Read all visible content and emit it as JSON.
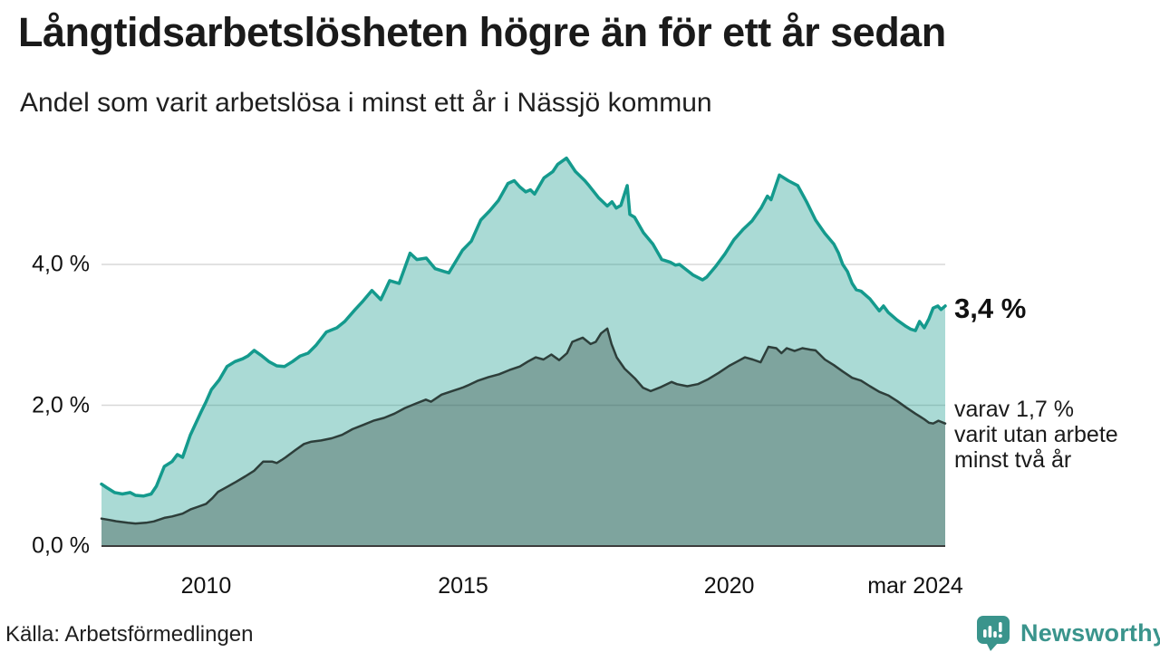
{
  "header": {
    "title": "Långtidsarbetslösheten högre än för ett år sedan",
    "subtitle": "Andel som varit arbetslösa i minst ett år i Nässjö kommun"
  },
  "annotations": {
    "latest_label": "3,4 %",
    "secondary_lines": [
      "varav 1,7 %",
      "varit utan arbete",
      "minst två år"
    ]
  },
  "footer": {
    "source": "Källa: Arbetsförmedlingen",
    "brand_name": "Newsworthy"
  },
  "colors": {
    "teal_line": "#149a8d",
    "teal_fill": "rgba(20,153,138,0.36)",
    "dark_line": "#2d3e3a",
    "dark_fill": "rgba(45,62,58,0.35)",
    "grid": "#d8d8d8",
    "axis": "#3c3c3c",
    "brand_teal": "#3a948c",
    "text": "#1a1a1a"
  },
  "chart_data": {
    "type": "area",
    "title": "Långtidsarbetslösheten högre än för ett år sedan",
    "subtitle": "Andel som varit arbetslösa i minst ett år i Nässjö kommun",
    "xlabel": "",
    "ylabel": "",
    "unit": "%",
    "grid": "horizontal",
    "legend_position": "none",
    "x_range": [
      2008.0,
      2024.13
    ],
    "ylim": [
      0,
      5.7
    ],
    "y_ticks": [
      {
        "value": 0,
        "label": "0,0 %"
      },
      {
        "value": 2,
        "label": "2,0 %"
      },
      {
        "value": 4,
        "label": "4,0 %"
      }
    ],
    "x_ticks": [
      {
        "year": 2010,
        "label": "2010",
        "dx": 0
      },
      {
        "year": 2015,
        "label": "2015",
        "dx": -5
      },
      {
        "year": 2020,
        "label": "2020",
        "dx": 0
      },
      {
        "year": 2024.13,
        "label": "mar 2024",
        "dx": -33
      }
    ],
    "series": [
      {
        "name": "Arbetslösa minst ett år",
        "end_label": "3,4 %",
        "latest_value": 3.4,
        "stroke": "#149a8d",
        "fill": "rgba(20,153,138,0.36)",
        "stroke_width": 3.5,
        "points": [
          [
            2008.0,
            0.88
          ],
          [
            2008.1,
            0.83
          ],
          [
            2008.25,
            0.76
          ],
          [
            2008.4,
            0.74
          ],
          [
            2008.55,
            0.76
          ],
          [
            2008.65,
            0.72
          ],
          [
            2008.8,
            0.71
          ],
          [
            2008.95,
            0.74
          ],
          [
            2009.05,
            0.85
          ],
          [
            2009.2,
            1.13
          ],
          [
            2009.35,
            1.2
          ],
          [
            2009.45,
            1.3
          ],
          [
            2009.55,
            1.26
          ],
          [
            2009.7,
            1.58
          ],
          [
            2009.9,
            1.9
          ],
          [
            2010.0,
            2.05
          ],
          [
            2010.1,
            2.22
          ],
          [
            2010.25,
            2.36
          ],
          [
            2010.4,
            2.55
          ],
          [
            2010.55,
            2.62
          ],
          [
            2010.7,
            2.66
          ],
          [
            2010.8,
            2.7
          ],
          [
            2010.92,
            2.78
          ],
          [
            2011.05,
            2.71
          ],
          [
            2011.2,
            2.62
          ],
          [
            2011.35,
            2.56
          ],
          [
            2011.5,
            2.55
          ],
          [
            2011.65,
            2.62
          ],
          [
            2011.8,
            2.7
          ],
          [
            2011.95,
            2.74
          ],
          [
            2012.1,
            2.85
          ],
          [
            2012.3,
            3.04
          ],
          [
            2012.5,
            3.1
          ],
          [
            2012.65,
            3.19
          ],
          [
            2012.85,
            3.36
          ],
          [
            2013.0,
            3.48
          ],
          [
            2013.17,
            3.63
          ],
          [
            2013.34,
            3.5
          ],
          [
            2013.51,
            3.77
          ],
          [
            2013.69,
            3.73
          ],
          [
            2013.9,
            4.16
          ],
          [
            2014.03,
            4.07
          ],
          [
            2014.21,
            4.09
          ],
          [
            2014.38,
            3.94
          ],
          [
            2014.55,
            3.9
          ],
          [
            2014.64,
            3.88
          ],
          [
            2014.9,
            4.2
          ],
          [
            2015.07,
            4.33
          ],
          [
            2015.25,
            4.63
          ],
          [
            2015.42,
            4.76
          ],
          [
            2015.59,
            4.91
          ],
          [
            2015.77,
            5.15
          ],
          [
            2015.89,
            5.19
          ],
          [
            2016.0,
            5.1
          ],
          [
            2016.11,
            5.03
          ],
          [
            2016.2,
            5.06
          ],
          [
            2016.28,
            5.0
          ],
          [
            2016.46,
            5.23
          ],
          [
            2016.63,
            5.32
          ],
          [
            2016.72,
            5.42
          ],
          [
            2016.89,
            5.51
          ],
          [
            2017.06,
            5.32
          ],
          [
            2017.24,
            5.19
          ],
          [
            2017.32,
            5.12
          ],
          [
            2017.5,
            4.95
          ],
          [
            2017.67,
            4.83
          ],
          [
            2017.76,
            4.89
          ],
          [
            2017.84,
            4.8
          ],
          [
            2017.93,
            4.84
          ],
          [
            2018.05,
            5.12
          ],
          [
            2018.1,
            4.71
          ],
          [
            2018.19,
            4.67
          ],
          [
            2018.36,
            4.45
          ],
          [
            2018.54,
            4.29
          ],
          [
            2018.71,
            4.07
          ],
          [
            2018.88,
            4.03
          ],
          [
            2018.97,
            3.99
          ],
          [
            2019.05,
            4.0
          ],
          [
            2019.31,
            3.85
          ],
          [
            2019.49,
            3.78
          ],
          [
            2019.57,
            3.82
          ],
          [
            2019.75,
            3.98
          ],
          [
            2019.92,
            4.15
          ],
          [
            2020.09,
            4.35
          ],
          [
            2020.27,
            4.5
          ],
          [
            2020.44,
            4.62
          ],
          [
            2020.61,
            4.8
          ],
          [
            2020.73,
            4.97
          ],
          [
            2020.8,
            4.92
          ],
          [
            2020.96,
            5.27
          ],
          [
            2021.13,
            5.19
          ],
          [
            2021.31,
            5.12
          ],
          [
            2021.48,
            4.89
          ],
          [
            2021.65,
            4.63
          ],
          [
            2021.83,
            4.44
          ],
          [
            2022.0,
            4.29
          ],
          [
            2022.09,
            4.16
          ],
          [
            2022.17,
            4.0
          ],
          [
            2022.26,
            3.9
          ],
          [
            2022.35,
            3.73
          ],
          [
            2022.43,
            3.64
          ],
          [
            2022.52,
            3.62
          ],
          [
            2022.69,
            3.51
          ],
          [
            2022.87,
            3.34
          ],
          [
            2022.95,
            3.41
          ],
          [
            2023.04,
            3.32
          ],
          [
            2023.21,
            3.21
          ],
          [
            2023.38,
            3.12
          ],
          [
            2023.47,
            3.08
          ],
          [
            2023.56,
            3.06
          ],
          [
            2023.64,
            3.19
          ],
          [
            2023.73,
            3.1
          ],
          [
            2023.82,
            3.23
          ],
          [
            2023.9,
            3.38
          ],
          [
            2023.99,
            3.41
          ],
          [
            2024.05,
            3.36
          ],
          [
            2024.13,
            3.41
          ]
        ]
      },
      {
        "name": "Varav utan arbete minst två år",
        "end_label": "1,7 %",
        "latest_value": 1.7,
        "stroke": "#2d3e3a",
        "fill": "rgba(45,62,58,0.35)",
        "stroke_width": 2.5,
        "points": [
          [
            2008.0,
            0.39
          ],
          [
            2008.15,
            0.37
          ],
          [
            2008.3,
            0.35
          ],
          [
            2008.5,
            0.33
          ],
          [
            2008.65,
            0.32
          ],
          [
            2008.85,
            0.33
          ],
          [
            2009.0,
            0.35
          ],
          [
            2009.2,
            0.4
          ],
          [
            2009.35,
            0.42
          ],
          [
            2009.55,
            0.46
          ],
          [
            2009.7,
            0.52
          ],
          [
            2009.85,
            0.56
          ],
          [
            2010.0,
            0.6
          ],
          [
            2010.12,
            0.68
          ],
          [
            2010.23,
            0.77
          ],
          [
            2010.4,
            0.84
          ],
          [
            2010.57,
            0.91
          ],
          [
            2010.75,
            0.99
          ],
          [
            2010.92,
            1.07
          ],
          [
            2011.09,
            1.2
          ],
          [
            2011.26,
            1.2
          ],
          [
            2011.35,
            1.18
          ],
          [
            2011.44,
            1.22
          ],
          [
            2011.52,
            1.26
          ],
          [
            2011.7,
            1.36
          ],
          [
            2011.87,
            1.45
          ],
          [
            2012.0,
            1.48
          ],
          [
            2012.2,
            1.5
          ],
          [
            2012.4,
            1.53
          ],
          [
            2012.6,
            1.58
          ],
          [
            2012.8,
            1.66
          ],
          [
            2013.0,
            1.72
          ],
          [
            2013.2,
            1.78
          ],
          [
            2013.4,
            1.82
          ],
          [
            2013.6,
            1.88
          ],
          [
            2013.8,
            1.96
          ],
          [
            2014.0,
            2.02
          ],
          [
            2014.2,
            2.08
          ],
          [
            2014.3,
            2.05
          ],
          [
            2014.5,
            2.15
          ],
          [
            2014.7,
            2.2
          ],
          [
            2014.9,
            2.25
          ],
          [
            2015.0,
            2.28
          ],
          [
            2015.2,
            2.35
          ],
          [
            2015.4,
            2.4
          ],
          [
            2015.6,
            2.44
          ],
          [
            2015.8,
            2.5
          ],
          [
            2016.0,
            2.55
          ],
          [
            2016.15,
            2.62
          ],
          [
            2016.3,
            2.68
          ],
          [
            2016.45,
            2.65
          ],
          [
            2016.6,
            2.72
          ],
          [
            2016.75,
            2.64
          ],
          [
            2016.9,
            2.74
          ],
          [
            2017.0,
            2.9
          ],
          [
            2017.1,
            2.93
          ],
          [
            2017.2,
            2.96
          ],
          [
            2017.35,
            2.87
          ],
          [
            2017.45,
            2.9
          ],
          [
            2017.55,
            3.02
          ],
          [
            2017.67,
            3.09
          ],
          [
            2017.75,
            2.87
          ],
          [
            2017.85,
            2.68
          ],
          [
            2018.0,
            2.52
          ],
          [
            2018.2,
            2.38
          ],
          [
            2018.35,
            2.25
          ],
          [
            2018.5,
            2.2
          ],
          [
            2018.7,
            2.26
          ],
          [
            2018.9,
            2.33
          ],
          [
            2019.0,
            2.3
          ],
          [
            2019.2,
            2.27
          ],
          [
            2019.4,
            2.3
          ],
          [
            2019.6,
            2.37
          ],
          [
            2019.8,
            2.46
          ],
          [
            2020.0,
            2.56
          ],
          [
            2020.15,
            2.62
          ],
          [
            2020.3,
            2.68
          ],
          [
            2020.45,
            2.65
          ],
          [
            2020.6,
            2.61
          ],
          [
            2020.75,
            2.83
          ],
          [
            2020.9,
            2.81
          ],
          [
            2021.0,
            2.74
          ],
          [
            2021.1,
            2.81
          ],
          [
            2021.25,
            2.77
          ],
          [
            2021.4,
            2.81
          ],
          [
            2021.55,
            2.79
          ],
          [
            2021.65,
            2.78
          ],
          [
            2021.83,
            2.65
          ],
          [
            2022.0,
            2.57
          ],
          [
            2022.17,
            2.48
          ],
          [
            2022.35,
            2.39
          ],
          [
            2022.52,
            2.35
          ],
          [
            2022.69,
            2.27
          ],
          [
            2022.87,
            2.19
          ],
          [
            2023.04,
            2.14
          ],
          [
            2023.21,
            2.06
          ],
          [
            2023.38,
            1.97
          ],
          [
            2023.56,
            1.88
          ],
          [
            2023.73,
            1.8
          ],
          [
            2023.82,
            1.75
          ],
          [
            2023.9,
            1.74
          ],
          [
            2024.0,
            1.78
          ],
          [
            2024.13,
            1.74
          ]
        ]
      }
    ]
  }
}
